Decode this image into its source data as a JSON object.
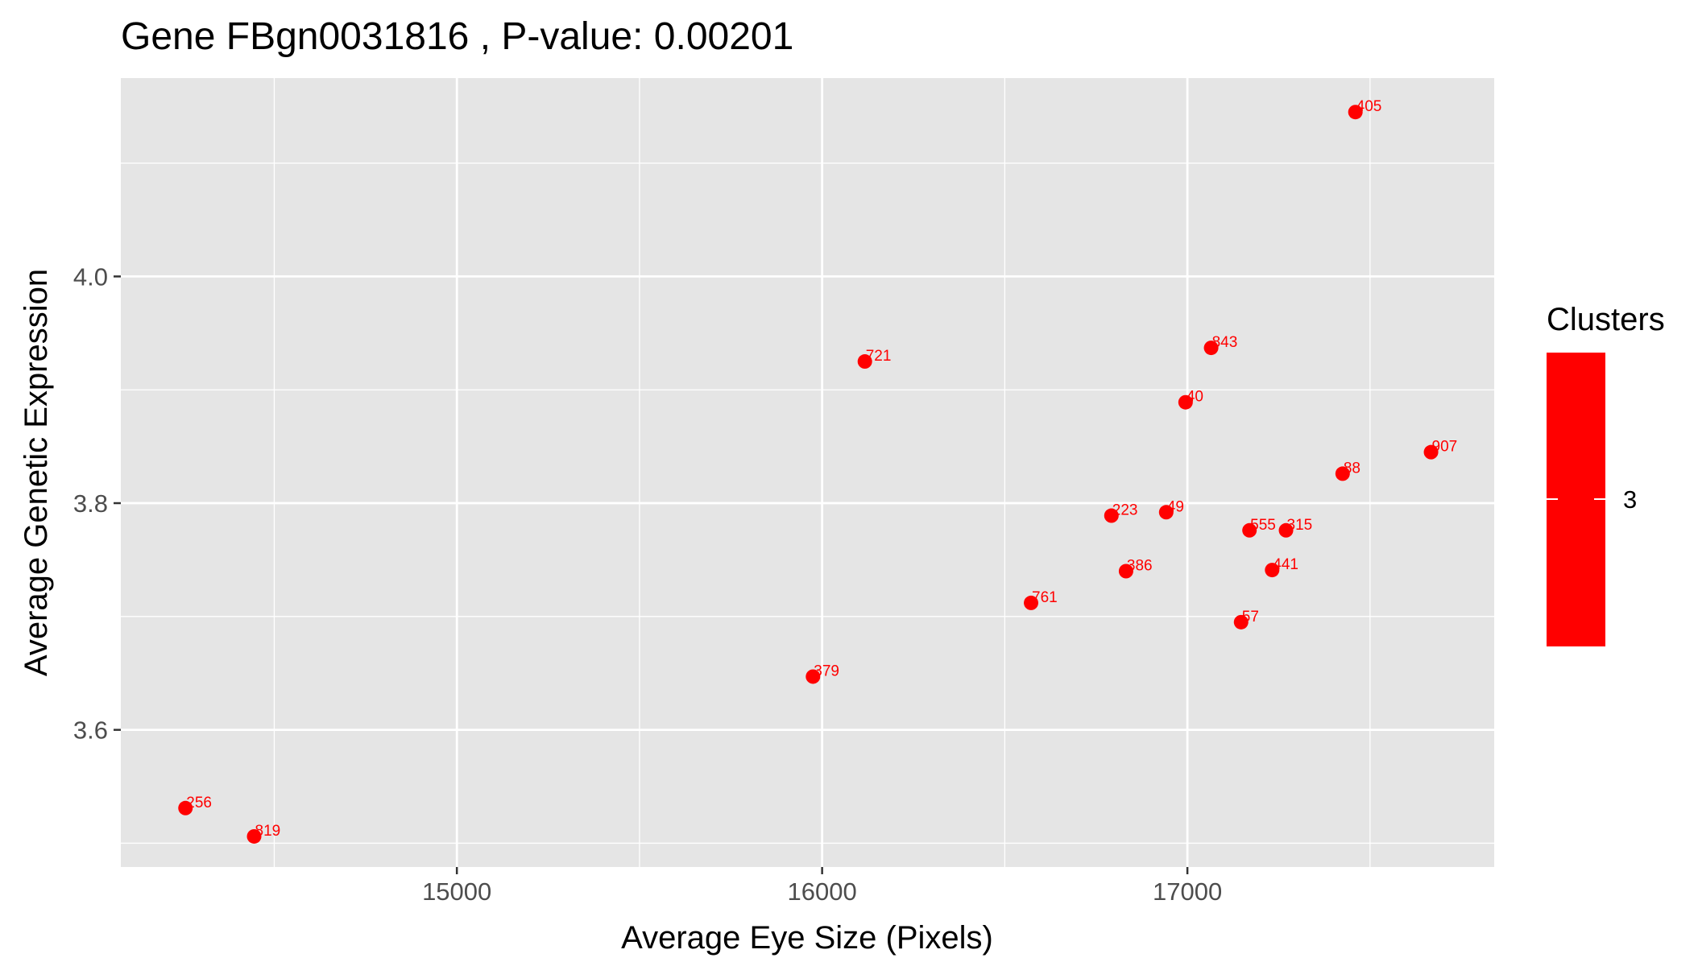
{
  "chart_data": {
    "type": "scatter",
    "title": "Gene FBgn0031816 , P-value: 0.00201",
    "xlabel": "Average Eye Size (Pixels)",
    "ylabel": "Average Genetic Expression",
    "xlim": [
      14080,
      17840
    ],
    "ylim": [
      3.479,
      4.175
    ],
    "x_major_ticks": [
      15000,
      16000,
      17000
    ],
    "x_minor_ticks": [
      14500,
      15500,
      16500,
      17500
    ],
    "y_major_ticks": [
      3.6,
      3.8,
      4.0
    ],
    "y_minor_ticks": [
      3.5,
      3.7,
      3.9,
      4.1
    ],
    "x_tick_labels": [
      "15000",
      "16000",
      "17000"
    ],
    "y_tick_labels": [
      "3.6",
      "3.8",
      "4.0"
    ],
    "grid": true,
    "panel_color": "#e5e5e5",
    "grid_color": "#ffffff",
    "point_color": "#ff0000",
    "legend": {
      "title": "Clusters",
      "placement": "right",
      "label": "3",
      "color": "#ff0000"
    },
    "points": [
      {
        "label": "405",
        "x": 17460,
        "y": 4.145
      },
      {
        "label": "843",
        "x": 17065,
        "y": 3.937
      },
      {
        "label": "721",
        "x": 16117,
        "y": 3.925
      },
      {
        "label": "40",
        "x": 16995,
        "y": 3.889
      },
      {
        "label": "907",
        "x": 17667,
        "y": 3.845
      },
      {
        "label": "88",
        "x": 17425,
        "y": 3.826
      },
      {
        "label": "49",
        "x": 16942,
        "y": 3.792
      },
      {
        "label": "223",
        "x": 16792,
        "y": 3.789
      },
      {
        "label": "555",
        "x": 17170,
        "y": 3.776
      },
      {
        "label": "315",
        "x": 17270,
        "y": 3.776
      },
      {
        "label": "386",
        "x": 16832,
        "y": 3.74
      },
      {
        "label": "441",
        "x": 17232,
        "y": 3.741
      },
      {
        "label": "761",
        "x": 16572,
        "y": 3.712
      },
      {
        "label": "57",
        "x": 17147,
        "y": 3.695
      },
      {
        "label": "379",
        "x": 15975,
        "y": 3.647
      },
      {
        "label": "256",
        "x": 14257,
        "y": 3.531
      },
      {
        "label": "819",
        "x": 14445,
        "y": 3.506
      }
    ]
  }
}
